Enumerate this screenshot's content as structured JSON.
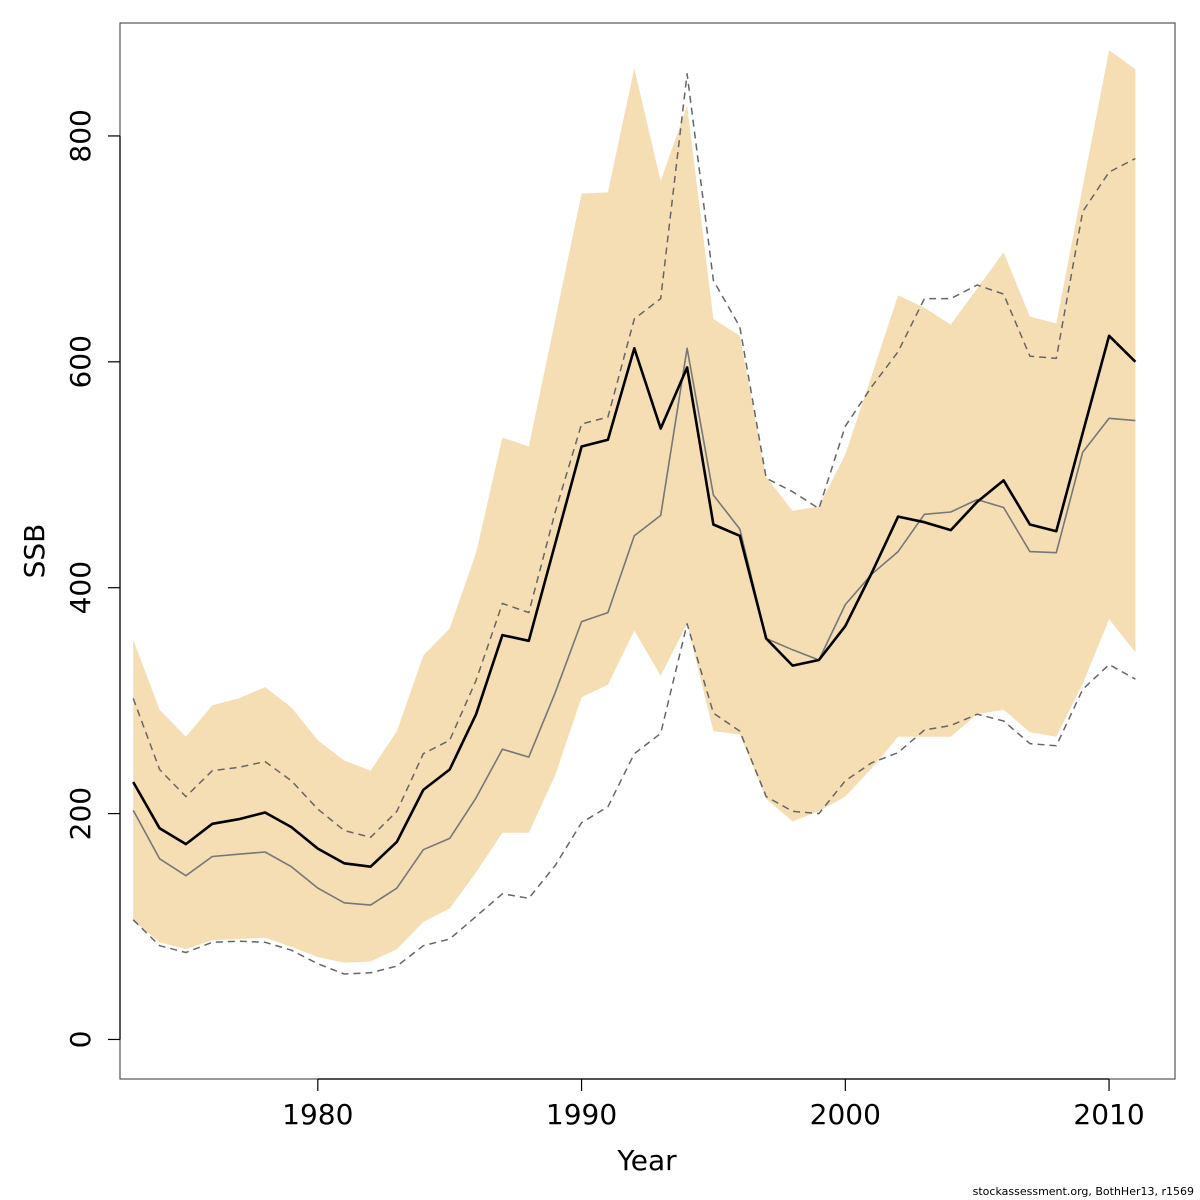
{
  "chart_data": {
    "type": "line",
    "xlabel": "Year",
    "ylabel": "SSB",
    "xlim": [
      1972.5,
      2012.5
    ],
    "ylim": [
      -35,
      900
    ],
    "x_ticks": [
      1980,
      1990,
      2000,
      2010
    ],
    "y_ticks": [
      0,
      200,
      400,
      600,
      800
    ],
    "colors": {
      "band": "#f5deb3",
      "main": "#000000",
      "alt": "#777777",
      "dashed": "#666666",
      "frame": "#555555"
    },
    "x": [
      1973,
      1974,
      1975,
      1976,
      1977,
      1978,
      1979,
      1980,
      1981,
      1982,
      1983,
      1984,
      1985,
      1986,
      1987,
      1988,
      1989,
      1990,
      1991,
      1992,
      1993,
      1994,
      1995,
      1996,
      1997,
      1998,
      1999,
      2000,
      2001,
      2002,
      2003,
      2004,
      2005,
      2006,
      2007,
      2008,
      2009,
      2010,
      2011
    ],
    "band": {
      "name": "confidence band",
      "upper": [
        354,
        292,
        268,
        296,
        302,
        312,
        294,
        265,
        247,
        238,
        273,
        340,
        364,
        431,
        533,
        525,
        637,
        749,
        750,
        860,
        760,
        827,
        638,
        623,
        498,
        468,
        472,
        518,
        588,
        659,
        648,
        633,
        665,
        697,
        640,
        634,
        755,
        876,
        859
      ],
      "lower": [
        105,
        86,
        80,
        88,
        89,
        90,
        82,
        73,
        68,
        69,
        80,
        104,
        116,
        148,
        183,
        183,
        234,
        303,
        314,
        362,
        322,
        368,
        273,
        270,
        213,
        193,
        202,
        215,
        240,
        268,
        268,
        268,
        288,
        292,
        272,
        268,
        315,
        372,
        343
      ]
    },
    "series": [
      {
        "name": "SSB estimate",
        "style": "solid-thick",
        "values": [
          228,
          187,
          173,
          191,
          195,
          201,
          188,
          169,
          156,
          153,
          175,
          221,
          239,
          288,
          358,
          353,
          439,
          525,
          531,
          612,
          541,
          595,
          456,
          446,
          355,
          331,
          336,
          366,
          413,
          463,
          458,
          451,
          476,
          495,
          456,
          450,
          537,
          623,
          600
        ]
      },
      {
        "name": "alternative estimate",
        "style": "solid-thin",
        "values": [
          203,
          160,
          145,
          162,
          164,
          166,
          153,
          134,
          121,
          119,
          134,
          168,
          178,
          214,
          257,
          250,
          307,
          370,
          378,
          446,
          464,
          612,
          482,
          452,
          355,
          345,
          336,
          385,
          412,
          432,
          465,
          467,
          478,
          471,
          432,
          431,
          520,
          550,
          548
        ]
      },
      {
        "name": "upper dashed",
        "style": "dashed",
        "values": [
          302,
          239,
          215,
          238,
          241,
          246,
          229,
          204,
          185,
          179,
          202,
          253,
          265,
          318,
          386,
          378,
          467,
          545,
          551,
          638,
          656,
          855,
          672,
          631,
          497,
          485,
          470,
          543,
          578,
          609,
          656,
          656,
          668,
          660,
          605,
          603,
          733,
          768,
          780
        ]
      },
      {
        "name": "lower dashed",
        "style": "dashed",
        "values": [
          106,
          83,
          77,
          86,
          87,
          86,
          79,
          67,
          58,
          59,
          65,
          83,
          89,
          109,
          129,
          125,
          154,
          192,
          206,
          253,
          271,
          368,
          289,
          273,
          215,
          202,
          200,
          229,
          245,
          254,
          274,
          278,
          288,
          282,
          262,
          260,
          310,
          332,
          319
        ]
      }
    ]
  },
  "footnote": "stockassessment.org, BothHer13, r1569"
}
